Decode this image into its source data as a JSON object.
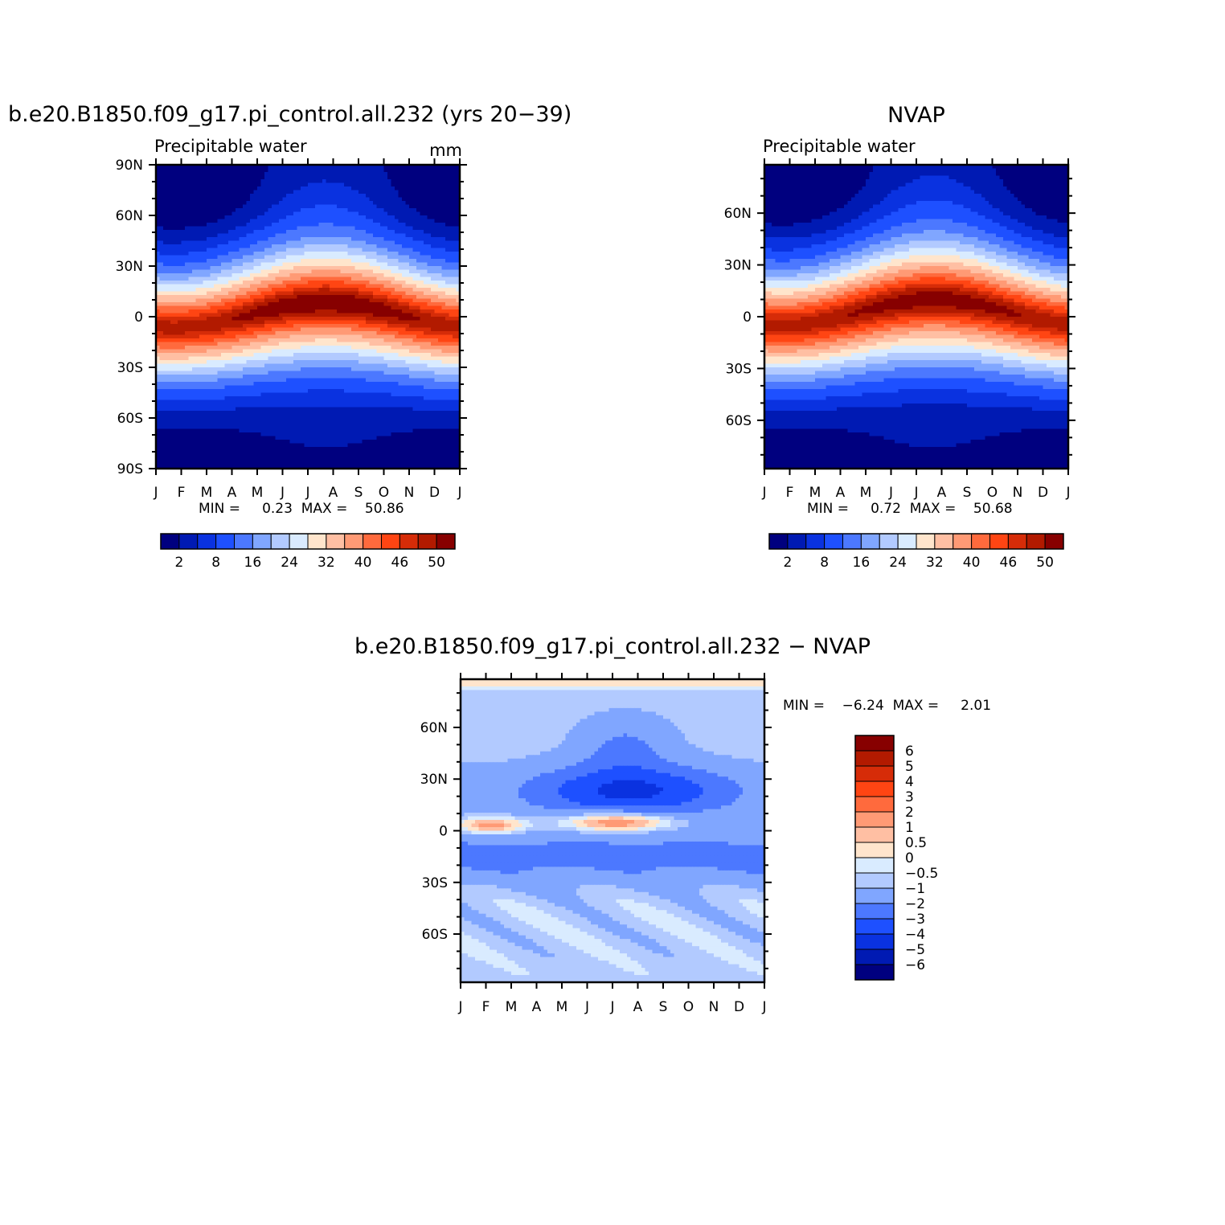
{
  "colors": {
    "fill12": [
      "#00007f",
      "#001ab3",
      "#0a32e0",
      "#1e50ff",
      "#4c78ff",
      "#80a6ff",
      "#b2caff",
      "#d9ebff",
      "#ffe5cc",
      "#ffbfa3",
      "#ff9a75",
      "#ff6a3d",
      "#ff4513",
      "#d62c08",
      "#b21a00",
      "#870000"
    ],
    "diff": [
      "#00007f",
      "#001ab3",
      "#0a32e0",
      "#1e50ff",
      "#4c78ff",
      "#80a6ff",
      "#b2caff",
      "#d9ebff",
      "#ffe5cc",
      "#ffbfa3",
      "#ff9a75",
      "#ff6a3d",
      "#ff4513",
      "#d62c08",
      "#b21a00",
      "#870000"
    ]
  },
  "chart_data": [
    {
      "type": "heatmap",
      "title": "b.e20.B1850.f09_g17.pi_control.all.232 (yrs 20−39)",
      "left_string": "Precipitable water",
      "right_string": "mm",
      "x_ticks": [
        "J",
        "F",
        "M",
        "A",
        "M",
        "J",
        "J",
        "A",
        "S",
        "O",
        "N",
        "D",
        "J"
      ],
      "y_ticks": [
        "90N",
        "60N",
        "30N",
        "0",
        "30S",
        "60S",
        "90S"
      ],
      "ylim": [
        -90,
        90
      ],
      "stats_text": "MIN =     0.23  MAX =    50.86",
      "min": 0.23,
      "max": 50.86,
      "colorbar_labels": [
        "2",
        "8",
        "16",
        "24",
        "32",
        "40",
        "46",
        "50"
      ]
    },
    {
      "type": "heatmap",
      "title": "NVAP",
      "left_string": "Precipitable water",
      "right_string": "",
      "x_ticks": [
        "J",
        "F",
        "M",
        "A",
        "M",
        "J",
        "J",
        "A",
        "S",
        "O",
        "N",
        "D",
        "J"
      ],
      "y_ticks": [
        "60N",
        "30N",
        "0",
        "30S",
        "60S"
      ],
      "ylim": [
        -88,
        88
      ],
      "stats_text": "MIN =     0.72  MAX =    50.68",
      "min": 0.72,
      "max": 50.68,
      "colorbar_labels": [
        "2",
        "8",
        "16",
        "24",
        "32",
        "40",
        "46",
        "50"
      ]
    },
    {
      "type": "heatmap",
      "title": "b.e20.B1850.f09_g17.pi_control.all.232 − NVAP",
      "x_ticks": [
        "J",
        "F",
        "M",
        "A",
        "M",
        "J",
        "J",
        "A",
        "S",
        "O",
        "N",
        "D",
        "J"
      ],
      "y_ticks": [
        "60N",
        "30N",
        "0",
        "30S",
        "60S"
      ],
      "ylim": [
        -88,
        88
      ],
      "stats_text": "MIN =    −6.24  MAX =     2.01",
      "min": -6.24,
      "max": 2.01,
      "colorbar_labels": [
        "6",
        "5",
        "4",
        "3",
        "2",
        "1",
        "0.5",
        "0",
        "−0.5",
        "−1",
        "−2",
        "−3",
        "−4",
        "−5",
        "−6"
      ]
    }
  ]
}
